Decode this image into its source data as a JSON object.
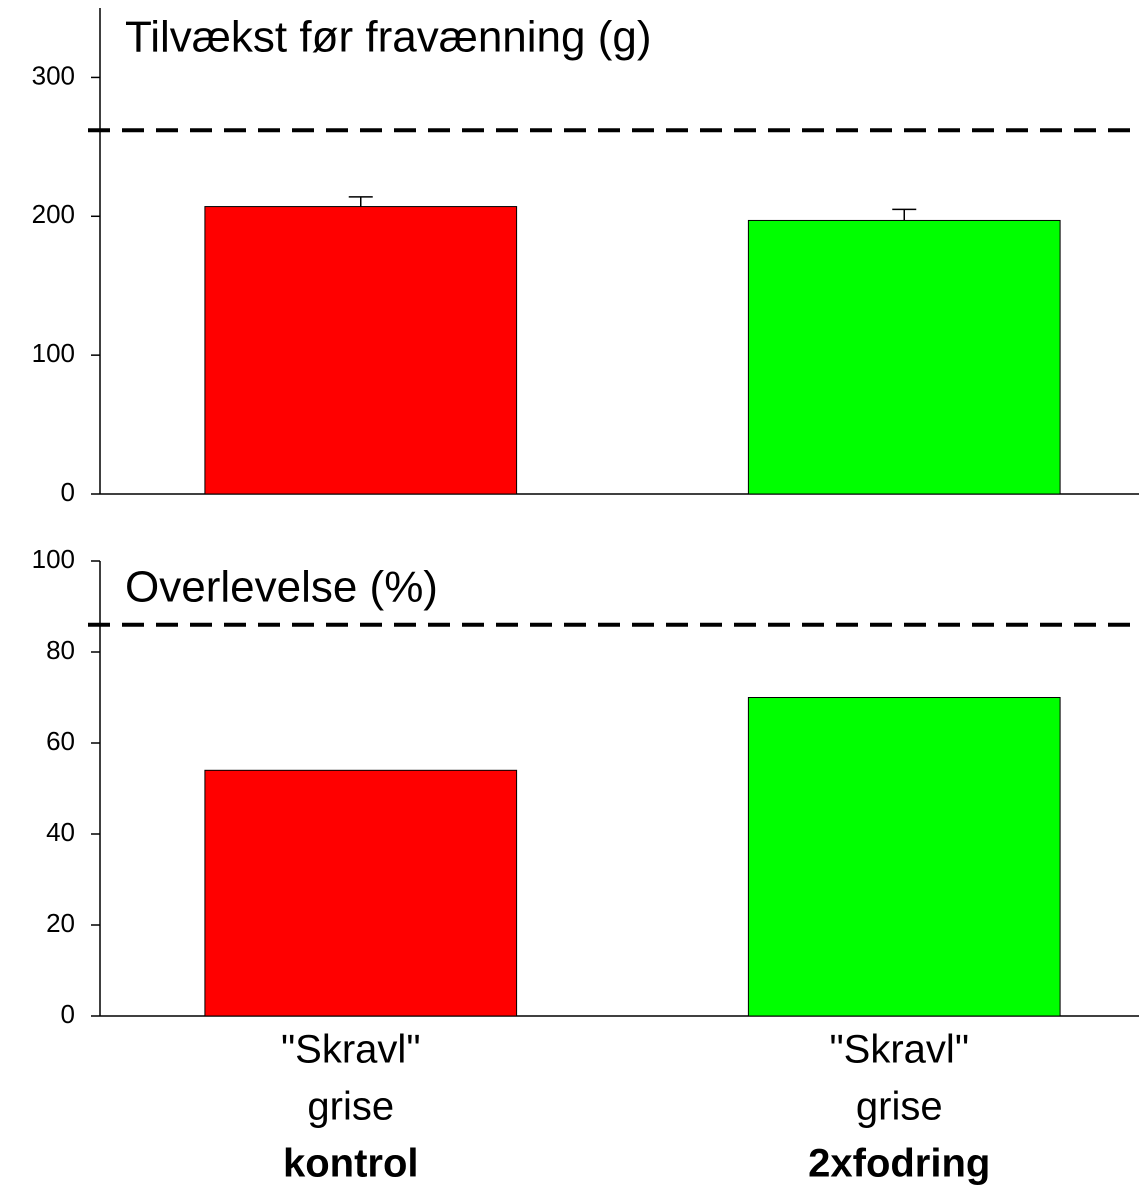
{
  "chart_data": [
    {
      "type": "bar",
      "title": "Tilvækst før fravænning (g)",
      "categories": [
        null,
        null
      ],
      "values": [
        207,
        197
      ],
      "errors": [
        7,
        8
      ],
      "colors": [
        "#ff0000",
        "#00ff00"
      ],
      "reference_line": 262,
      "ylim": [
        0,
        350
      ],
      "yticks": [
        0,
        100,
        200,
        300
      ]
    },
    {
      "type": "bar",
      "title": "Overlevelse (%)",
      "categories": [
        [
          "\"Skravl\"",
          "grise",
          "kontrol"
        ],
        [
          "\"Skravl\"",
          "grise",
          "2xfodring"
        ]
      ],
      "values": [
        54,
        70
      ],
      "colors": [
        "#ff0000",
        "#00ff00"
      ],
      "reference_line": 86,
      "ylim": [
        0,
        100
      ],
      "yticks": [
        0,
        20,
        40,
        60,
        80,
        100
      ]
    }
  ]
}
